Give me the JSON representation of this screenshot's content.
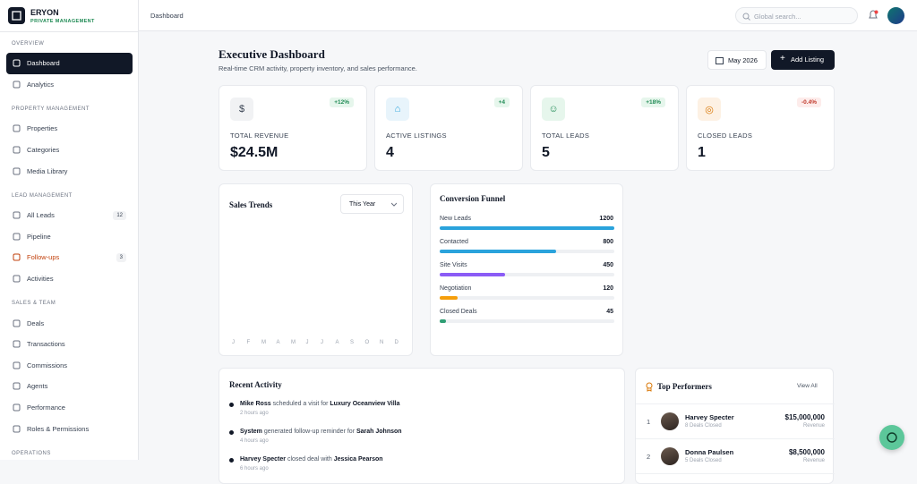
{
  "brand": {
    "name": "ERYON",
    "tagline": "PRIVATE MANAGEMENT"
  },
  "sidebar": [
    {
      "title": "OVERVIEW",
      "items": [
        {
          "label": "Dashboard",
          "active": true
        },
        {
          "label": "Analytics"
        }
      ]
    },
    {
      "title": "PROPERTY MANAGEMENT",
      "items": [
        {
          "label": "Properties"
        },
        {
          "label": "Categories"
        },
        {
          "label": "Media Library"
        }
      ]
    },
    {
      "title": "LEAD MANAGEMENT",
      "items": [
        {
          "label": "All Leads",
          "badge": "12"
        },
        {
          "label": "Pipeline"
        },
        {
          "label": "Follow-ups",
          "badge": "3",
          "highlight": true
        },
        {
          "label": "Activities"
        }
      ]
    },
    {
      "title": "SALES & TEAM",
      "items": [
        {
          "label": "Deals"
        },
        {
          "label": "Transactions"
        },
        {
          "label": "Commissions"
        },
        {
          "label": "Agents"
        },
        {
          "label": "Performance"
        },
        {
          "label": "Roles & Permissions"
        }
      ]
    },
    {
      "title": "OPERATIONS",
      "items": []
    }
  ],
  "topbar": {
    "breadcrumb": "Dashboard",
    "search_placeholder": "Global search..."
  },
  "header": {
    "title": "Executive Dashboard",
    "subtitle": "Real-time CRM activity, property inventory, and sales performance.",
    "date": "May 2026",
    "button": "Add Listing"
  },
  "kpis": [
    {
      "label": "TOTAL REVENUE",
      "value": "$24.5M",
      "change": "+12%",
      "icon": "$",
      "trend": "up"
    },
    {
      "label": "ACTIVE LISTINGS",
      "value": "4",
      "change": "+4",
      "icon": "home",
      "trend": "up"
    },
    {
      "label": "TOTAL LEADS",
      "value": "5",
      "change": "+18%",
      "icon": "users",
      "trend": "up"
    },
    {
      "label": "CLOSED LEADS",
      "value": "1",
      "change": "-0.4%",
      "icon": "target",
      "trend": "down"
    }
  ],
  "sales_trends": {
    "title": "Sales Trends",
    "filter": "This Year",
    "categories": [
      "J",
      "F",
      "M",
      "A",
      "M",
      "J",
      "J",
      "A",
      "S",
      "O",
      "N",
      "D"
    ]
  },
  "funnel": {
    "title": "Conversion Funnel",
    "stages": [
      {
        "name": "New Leads",
        "value": 1200,
        "color": "#2aa3dc"
      },
      {
        "name": "Contacted",
        "value": 800,
        "color": "#2aa3dc"
      },
      {
        "name": "Site Visits",
        "value": 450,
        "color": "#8b5cf6"
      },
      {
        "name": "Negotiation",
        "value": 120,
        "color": "#f59e0b"
      },
      {
        "name": "Closed Deals",
        "value": 45,
        "color": "#2f9e74"
      }
    ]
  },
  "recent_activity": {
    "title": "Recent Activity",
    "items": [
      {
        "actor": "Mike Ross",
        "action": "scheduled a visit for",
        "target": "Luxury Oceanview Villa",
        "time": "2 hours ago"
      },
      {
        "actor": "System",
        "action": "generated follow-up reminder for",
        "target": "Sarah Johnson",
        "time": "4 hours ago"
      },
      {
        "actor": "Harvey Specter",
        "action": "closed deal with",
        "target": "Jessica Pearson",
        "time": "6 hours ago"
      }
    ]
  },
  "top_performers": {
    "title": "Top Performers",
    "link": "View All",
    "rows": [
      {
        "rank": "1",
        "name": "Harvey Specter",
        "sub": "8 Deals Closed",
        "amount": "$15,000,000",
        "amount_label": "Revenue"
      },
      {
        "rank": "2",
        "name": "Donna Paulsen",
        "sub": "5 Deals Closed",
        "amount": "$8,500,000",
        "amount_label": "Revenue"
      }
    ]
  }
}
